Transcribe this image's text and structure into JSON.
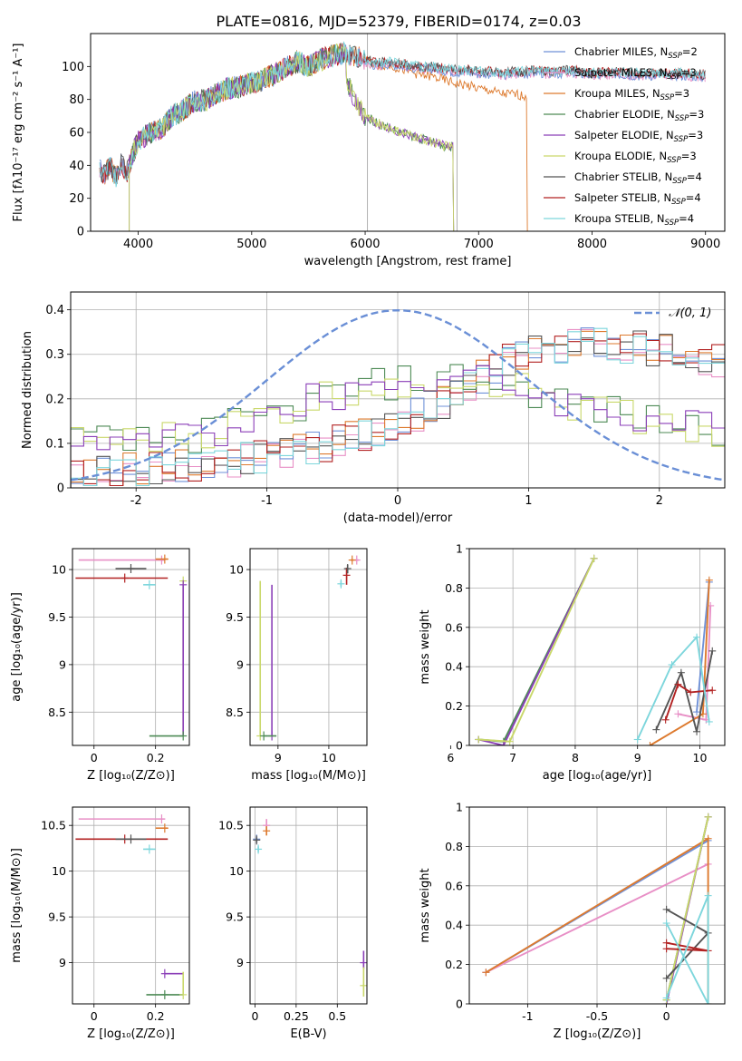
{
  "figure": {
    "title": "PLATE=0816, MJD=52379, FIBERID=0174, z=0.03"
  },
  "series_names": [
    "Chabrier MILES, N$_{SSP}$=2",
    "Salpeter MILES, N$_{SSP}$=3",
    "Kroupa MILES, N$_{SSP}$=3",
    "Chabrier ELODIE, N$_{SSP}$=3",
    "Salpeter ELODIE, N$_{SSP}$=3",
    "Kroupa ELODIE, N$_{SSP}$=3",
    "Chabrier STELIB, N$_{SSP}$=4",
    "Salpeter STELIB, N$_{SSP}$=4",
    "Kroupa STELIB, N$_{SSP}$=4"
  ],
  "colors": [
    "#6f91d8",
    "#e88fc6",
    "#dd7a2e",
    "#4d8a55",
    "#8b3fb8",
    "#c9d86a",
    "#555555",
    "#b22222",
    "#7dd6dc"
  ],
  "chart_data": [
    {
      "id": "spectrum",
      "type": "line",
      "title": "PLATE=0816, MJD=52379, FIBERID=0174, z=0.03",
      "xlabel": "wavelength [Angstrom, rest frame]",
      "ylabel": "Flux [fλ10⁻¹⁷ erg cm⁻² s⁻¹ A⁻¹]",
      "xlim": [
        3580,
        9170
      ],
      "ylim": [
        0,
        120
      ],
      "xticks": [
        4000,
        5000,
        6000,
        7000,
        8000,
        9000
      ],
      "yticks": [
        0,
        20,
        40,
        60,
        80,
        100
      ],
      "legend": "top-right",
      "grid": "vertical lines at 6020 and 6810",
      "vlines": [
        6020,
        6810
      ],
      "envelope": {
        "x": [
          3660,
          3700,
          3750,
          3800,
          3850,
          3900,
          3950,
          4000,
          4100,
          4200,
          4300,
          4400,
          4500,
          4600,
          4700,
          4800,
          4900,
          5000,
          5100,
          5200,
          5300,
          5400,
          5500,
          5600,
          5700,
          5800,
          5900,
          6000,
          6100,
          6200,
          6300,
          6400,
          6500,
          6600,
          6700,
          6800,
          6900,
          7000,
          7100,
          7200,
          7300,
          7400,
          7500,
          7600,
          7700,
          7800,
          7900,
          8000,
          8200,
          8400,
          8600,
          8800,
          9000
        ],
        "y": [
          38,
          34,
          40,
          33,
          42,
          35,
          47,
          54,
          60,
          62,
          70,
          74,
          79,
          80,
          84,
          87,
          88,
          90,
          92,
          95,
          99,
          103,
          100,
          104,
          106,
          108,
          106,
          104,
          102,
          103,
          102,
          101,
          100,
          100,
          99,
          98,
          98,
          97,
          97,
          96,
          97,
          97,
          98,
          97,
          97,
          98,
          97,
          96,
          97,
          96,
          96,
          96,
          95
        ]
      },
      "elodie_tail": {
        "x": [
          5830,
          5900,
          6000,
          6100,
          6200,
          6300,
          6400,
          6500,
          6600,
          6700,
          6780
        ],
        "y": [
          95,
          80,
          70,
          66,
          63,
          60,
          58,
          56,
          54,
          52,
          51
        ]
      },
      "miles_stelib_dropout_at": 7430,
      "elodie_dropout_at": 6780
    },
    {
      "id": "residuals",
      "type": "line",
      "xlabel": "(data-model)/error",
      "ylabel": "Normed distribution",
      "xlim": [
        -2.5,
        2.5
      ],
      "ylim": [
        0,
        0.44
      ],
      "xticks": [
        -2,
        -1,
        0,
        1,
        2
      ],
      "yticks": [
        0.0,
        0.1,
        0.2,
        0.3,
        0.4
      ],
      "legend": "top-right",
      "grid": true,
      "series": [
        {
          "name": "𝒩(0, 1)",
          "mu": 0,
          "sigma": 1,
          "color": "#6a8fd6",
          "dashed": true
        }
      ],
      "hist_left": {
        "x": [
          -2.5,
          -2.0,
          -1.5,
          -1.0,
          -0.5,
          0.0,
          0.5,
          1.0,
          1.5,
          2.0,
          2.5
        ],
        "y": [
          0.03,
          0.04,
          0.05,
          0.07,
          0.1,
          0.14,
          0.22,
          0.31,
          0.33,
          0.31,
          0.28
        ]
      },
      "hist_right": {
        "x": [
          -2.5,
          -2.0,
          -1.5,
          -1.0,
          -0.5,
          0.0,
          0.5,
          1.0,
          1.5,
          2.0,
          2.5
        ],
        "y": [
          0.11,
          0.1,
          0.12,
          0.16,
          0.21,
          0.24,
          0.25,
          0.22,
          0.18,
          0.15,
          0.13
        ]
      }
    },
    {
      "id": "age-vs-Z",
      "type": "scatter",
      "xlabel": "Z [log₁₀(Z/Z⊙)]",
      "ylabel": "age  [log₁₀(age/yr)]",
      "xlim": [
        -0.07,
        0.31
      ],
      "ylim": [
        8.15,
        10.22
      ],
      "xticks": [
        0.0,
        0.2
      ],
      "yticks": [
        8.5,
        9.0,
        9.5,
        10.0
      ],
      "grid": true,
      "points": [
        {
          "series": 1,
          "x": 0.22,
          "y": 10.1,
          "xerr": [
            0.27,
            0.01
          ]
        },
        {
          "series": 2,
          "x": 0.23,
          "y": 10.11,
          "xerr": [
            0.03,
            0.01
          ]
        },
        {
          "series": 7,
          "x": 0.1,
          "y": 9.91,
          "xerr": [
            0.16,
            0.14
          ]
        },
        {
          "series": 6,
          "x": 0.12,
          "y": 10.01,
          "xerr": [
            0.05,
            0.05
          ]
        },
        {
          "series": 8,
          "x": 0.18,
          "y": 9.84,
          "xerr": [
            0.02,
            0.02
          ]
        },
        {
          "series": 5,
          "x": 0.29,
          "y": 9.88,
          "yerr": [
            1.62,
            0.0
          ]
        },
        {
          "series": 4,
          "x": 0.29,
          "y": 9.84,
          "yerr": [
            1.58,
            0.0
          ]
        },
        {
          "series": 3,
          "x": 0.29,
          "y": 8.25,
          "xerr": [
            0.11,
            0.0
          ]
        }
      ]
    },
    {
      "id": "age-vs-mass",
      "type": "scatter",
      "xlabel": "mass [log₁₀(M/M⊙)]",
      "ylabel": "",
      "xlim": [
        8.45,
        10.75
      ],
      "ylim": [
        8.15,
        10.22
      ],
      "xticks": [
        9,
        10
      ],
      "yticks": [
        8.5,
        9.0,
        9.5,
        10.0
      ],
      "grid": true,
      "points": [
        {
          "series": 5,
          "x": 8.65,
          "y": 8.25,
          "yerr": [
            0.0,
            1.63
          ]
        },
        {
          "series": 4,
          "x": 8.88,
          "y": 8.25,
          "yerr": [
            0.0,
            1.59
          ]
        },
        {
          "series": 3,
          "x": 8.72,
          "y": 8.25,
          "xerr": [
            0.0,
            0.25
          ]
        },
        {
          "series": 7,
          "x": 10.35,
          "y": 9.94,
          "yerr": [
            0.1,
            0.08
          ]
        },
        {
          "series": 6,
          "x": 10.37,
          "y": 10.01,
          "yerr": [
            0.05,
            0.04
          ]
        },
        {
          "series": 8,
          "x": 10.24,
          "y": 9.85,
          "yerr": [
            0.03,
            0.03
          ]
        },
        {
          "series": 1,
          "x": 10.55,
          "y": 10.1,
          "xerr": [
            0.04,
            0.04
          ]
        },
        {
          "series": 2,
          "x": 10.46,
          "y": 10.1,
          "xerr": [
            0.03,
            0.03
          ]
        }
      ]
    },
    {
      "id": "mass-weight-vs-age",
      "type": "line",
      "xlabel": "age  [log₁₀(age/yr)]",
      "ylabel": "mass weight",
      "xlim": [
        6.3,
        10.4
      ],
      "ylim": [
        0,
        1.0
      ],
      "xticks": [
        6,
        7,
        8,
        9,
        10
      ],
      "yticks": [
        0.0,
        0.2,
        0.4,
        0.6,
        0.8,
        1.0
      ],
      "grid": true,
      "series": [
        {
          "series": 0,
          "x": [
            9.95,
            10.15
          ],
          "y": [
            0.17,
            0.83
          ]
        },
        {
          "series": 1,
          "x": [
            9.65,
            10.1,
            10.17
          ],
          "y": [
            0.16,
            0.13,
            0.71
          ]
        },
        {
          "series": 2,
          "x": [
            9.2,
            10.05,
            10.15
          ],
          "y": [
            0.0,
            0.16,
            0.84
          ]
        },
        {
          "series": 3,
          "x": [
            6.45,
            6.85,
            8.3
          ],
          "y": [
            0.03,
            0.02,
            0.95
          ]
        },
        {
          "series": 4,
          "x": [
            6.45,
            6.85,
            8.3
          ],
          "y": [
            0.03,
            0.0,
            0.95
          ]
        },
        {
          "series": 5,
          "x": [
            6.45,
            6.95,
            8.3
          ],
          "y": [
            0.03,
            0.02,
            0.95
          ]
        },
        {
          "series": 6,
          "x": [
            9.3,
            9.7,
            9.95,
            10.2
          ],
          "y": [
            0.08,
            0.37,
            0.07,
            0.48
          ]
        },
        {
          "series": 7,
          "x": [
            9.45,
            9.65,
            9.85,
            10.2
          ],
          "y": [
            0.13,
            0.31,
            0.27,
            0.28
          ]
        },
        {
          "series": 8,
          "x": [
            9.0,
            9.55,
            9.95,
            10.15
          ],
          "y": [
            0.03,
            0.41,
            0.55,
            0.12
          ]
        }
      ]
    },
    {
      "id": "mass-vs-Z",
      "type": "scatter",
      "xlabel": "Z [log₁₀(Z/Z⊙)]",
      "ylabel": "mass [log₁₀(M/M⊙)]",
      "xlim": [
        -0.07,
        0.31
      ],
      "ylim": [
        8.55,
        10.7
      ],
      "xticks": [
        0.0,
        0.2
      ],
      "yticks": [
        9.0,
        9.5,
        10.0,
        10.5
      ],
      "grid": true,
      "points": [
        {
          "series": 1,
          "x": 0.22,
          "y": 10.57,
          "xerr": [
            0.27,
            0.01
          ]
        },
        {
          "series": 2,
          "x": 0.23,
          "y": 10.47,
          "xerr": [
            0.03,
            0.01
          ]
        },
        {
          "series": 7,
          "x": 0.1,
          "y": 10.35,
          "xerr": [
            0.16,
            0.14
          ]
        },
        {
          "series": 6,
          "x": 0.12,
          "y": 10.35,
          "xerr": [
            0.05,
            0.05
          ]
        },
        {
          "series": 8,
          "x": 0.18,
          "y": 10.24,
          "xerr": [
            0.02,
            0.02
          ]
        },
        {
          "series": 4,
          "x": 0.23,
          "y": 8.88,
          "xerr": [
            0.0,
            0.06
          ]
        },
        {
          "series": 3,
          "x": 0.23,
          "y": 8.65,
          "xerr": [
            0.06,
            0.06
          ]
        },
        {
          "series": 5,
          "x": 0.29,
          "y": 8.65,
          "yerr": [
            0.0,
            0.25
          ]
        }
      ]
    },
    {
      "id": "mass-vs-ebv",
      "type": "scatter",
      "xlabel": "E(B-V)",
      "ylabel": "",
      "xlim": [
        -0.03,
        0.68
      ],
      "ylim": [
        8.55,
        10.7
      ],
      "xticks": [
        0.0,
        0.25,
        0.5
      ],
      "yticks": [
        9.0,
        9.5,
        10.0,
        10.5
      ],
      "grid": true,
      "points": [
        {
          "series": 0,
          "x": 0.01,
          "y": 10.35,
          "yerr": [
            0.04,
            0.04
          ]
        },
        {
          "series": 6,
          "x": 0.01,
          "y": 10.34,
          "yerr": [
            0.03,
            0.03
          ]
        },
        {
          "series": 8,
          "x": 0.02,
          "y": 10.24,
          "yerr": [
            0.03,
            0.03
          ]
        },
        {
          "series": 1,
          "x": 0.07,
          "y": 10.5,
          "yerr": [
            0.07,
            0.07
          ]
        },
        {
          "series": 2,
          "x": 0.07,
          "y": 10.44,
          "yerr": [
            0.05,
            0.05
          ]
        },
        {
          "series": 4,
          "x": 0.66,
          "y": 9.0,
          "yerr": [
            0.07,
            0.13
          ]
        },
        {
          "series": 5,
          "x": 0.66,
          "y": 8.75,
          "yerr": [
            0.12,
            0.2
          ]
        }
      ]
    },
    {
      "id": "mass-weight-vs-Z",
      "type": "line",
      "xlabel": "Z [log₁₀(Z/Z⊙)]",
      "ylabel": "mass weight",
      "xlim": [
        -1.42,
        0.42
      ],
      "ylim": [
        0,
        1.0
      ],
      "xticks": [
        -1.0,
        -0.5,
        0.0
      ],
      "yticks": [
        0.0,
        0.2,
        0.4,
        0.6,
        0.8,
        1.0
      ],
      "grid": true,
      "series": [
        {
          "series": 0,
          "x": [
            -1.3,
            0.3
          ],
          "y": [
            0.16,
            0.83
          ]
        },
        {
          "series": 1,
          "x": [
            -1.3,
            0.3
          ],
          "y": [
            0.16,
            0.71
          ]
        },
        {
          "series": 2,
          "x": [
            -1.3,
            0.3,
            0.3
          ],
          "y": [
            0.16,
            0.84,
            0.0
          ]
        },
        {
          "series": 3,
          "x": [
            0.0,
            0.3
          ],
          "y": [
            0.02,
            0.95
          ]
        },
        {
          "series": 4,
          "x": [
            0.0,
            0.3
          ],
          "y": [
            0.0,
            0.95
          ]
        },
        {
          "series": 5,
          "x": [
            0.0,
            0.3
          ],
          "y": [
            0.02,
            0.95
          ]
        },
        {
          "series": 6,
          "x": [
            0.0,
            0.3,
            0.0
          ],
          "y": [
            0.48,
            0.36,
            0.13
          ]
        },
        {
          "series": 7,
          "x": [
            0.0,
            0.3,
            0.0
          ],
          "y": [
            0.28,
            0.27,
            0.31
          ]
        },
        {
          "series": 8,
          "x": [
            0.0,
            0.3,
            0.3,
            0.0
          ],
          "y": [
            0.03,
            0.55,
            0.0,
            0.41
          ]
        }
      ]
    }
  ]
}
